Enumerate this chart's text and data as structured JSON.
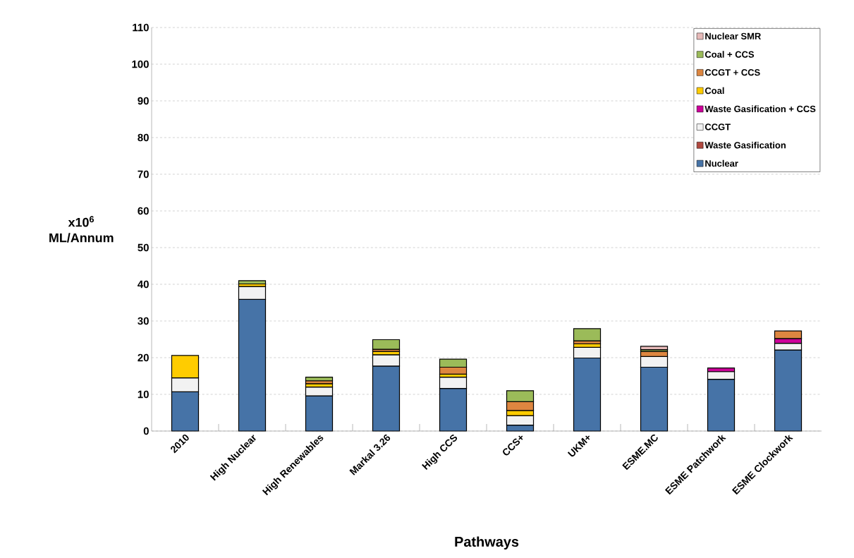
{
  "chart_data": {
    "type": "bar",
    "stacked": true,
    "xlabel": "Pathways",
    "ylabel": "x10$^{6}$ ML/Annum",
    "categories": [
      "2010",
      "High Nuclear",
      "High Renewables",
      "Markal 3.26",
      "High CCS",
      "CCS+",
      "UKM+",
      "ESME.MC",
      "ESME Patchwork",
      "ESME Clockwork"
    ],
    "series": [
      {
        "name": "Nuclear",
        "color": "#4673a7",
        "values": [
          10.7,
          35.9,
          9.6,
          17.7,
          11.6,
          1.6,
          19.9,
          17.4,
          14.1,
          22.1
        ]
      },
      {
        "name": "Waste Gasification",
        "color": "#b0483f",
        "values": [
          null,
          null,
          null,
          null,
          null,
          null,
          null,
          null,
          null,
          null
        ]
      },
      {
        "name": "CCGT",
        "color": "#f2f2f2",
        "values": [
          3.8,
          3.5,
          2.4,
          3.1,
          3.1,
          2.6,
          2.9,
          2.9,
          2.1,
          1.8
        ]
      },
      {
        "name": "Waste Gasification + CCS",
        "color": "#cc0099",
        "values": [
          null,
          null,
          null,
          null,
          null,
          null,
          null,
          null,
          1.0,
          1.3
        ]
      },
      {
        "name": "Coal",
        "color": "#ffcc00",
        "values": [
          6.1,
          0.7,
          0.9,
          0.9,
          0.8,
          1.4,
          1.0,
          null,
          null,
          null
        ]
      },
      {
        "name": "CCGT + CCS",
        "color": "#dd8640",
        "values": [
          null,
          null,
          0.8,
          0.6,
          1.9,
          2.4,
          0.8,
          1.4,
          null,
          2.1
        ]
      },
      {
        "name": "Coal + CCS",
        "color": "#9bbb59",
        "values": [
          null,
          0.9,
          1.0,
          2.6,
          2.2,
          3.0,
          3.3,
          0.5,
          null,
          null
        ]
      },
      {
        "name": "Nuclear SMR",
        "color": "#e6b9b8",
        "values": [
          null,
          null,
          null,
          null,
          null,
          null,
          null,
          0.9,
          null,
          null
        ]
      }
    ],
    "ylim": [
      0,
      110
    ],
    "yticks": [
      0,
      10,
      20,
      30,
      40,
      50,
      60,
      70,
      80,
      90,
      100,
      110
    ],
    "grid": "y",
    "legend": "top right"
  }
}
